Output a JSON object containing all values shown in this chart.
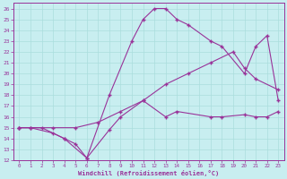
{
  "xlabel": "Windchill (Refroidissement éolien,°C)",
  "bg_color": "#c8eef0",
  "line_color": "#993399",
  "grid_color": "#aadddd",
  "xlim": [
    -0.5,
    23.5
  ],
  "ylim": [
    12,
    26.5
  ],
  "xticks": [
    0,
    1,
    2,
    3,
    4,
    5,
    6,
    7,
    8,
    9,
    10,
    11,
    12,
    13,
    14,
    15,
    16,
    17,
    18,
    19,
    20,
    21,
    22,
    23
  ],
  "yticks": [
    12,
    13,
    14,
    15,
    16,
    17,
    18,
    19,
    20,
    21,
    22,
    23,
    24,
    25,
    26
  ],
  "line1_x": [
    0,
    1,
    3,
    4,
    5,
    6,
    8,
    9,
    11,
    13,
    14,
    17,
    18,
    20,
    21,
    22,
    23
  ],
  "line1_y": [
    15,
    15,
    14.5,
    14,
    13.5,
    12.2,
    14.8,
    16,
    17.5,
    16,
    16.5,
    16,
    16,
    16.2,
    16,
    16,
    16.5
  ],
  "line2_x": [
    0,
    1,
    3,
    5,
    7,
    9,
    11,
    13,
    15,
    17,
    19,
    20,
    21,
    23
  ],
  "line2_y": [
    15,
    15,
    15,
    15,
    15.5,
    16.5,
    17.5,
    19,
    20,
    21,
    22,
    20.5,
    19.5,
    18.5
  ],
  "line3_x": [
    0,
    2,
    4,
    6,
    8,
    10,
    11,
    12,
    13,
    14,
    15,
    17,
    18,
    20,
    21,
    22,
    23
  ],
  "line3_y": [
    15,
    15,
    14,
    12.2,
    18,
    23,
    25,
    26,
    26,
    25,
    24.5,
    23,
    22.5,
    20,
    22.5,
    23.5,
    17.5
  ]
}
